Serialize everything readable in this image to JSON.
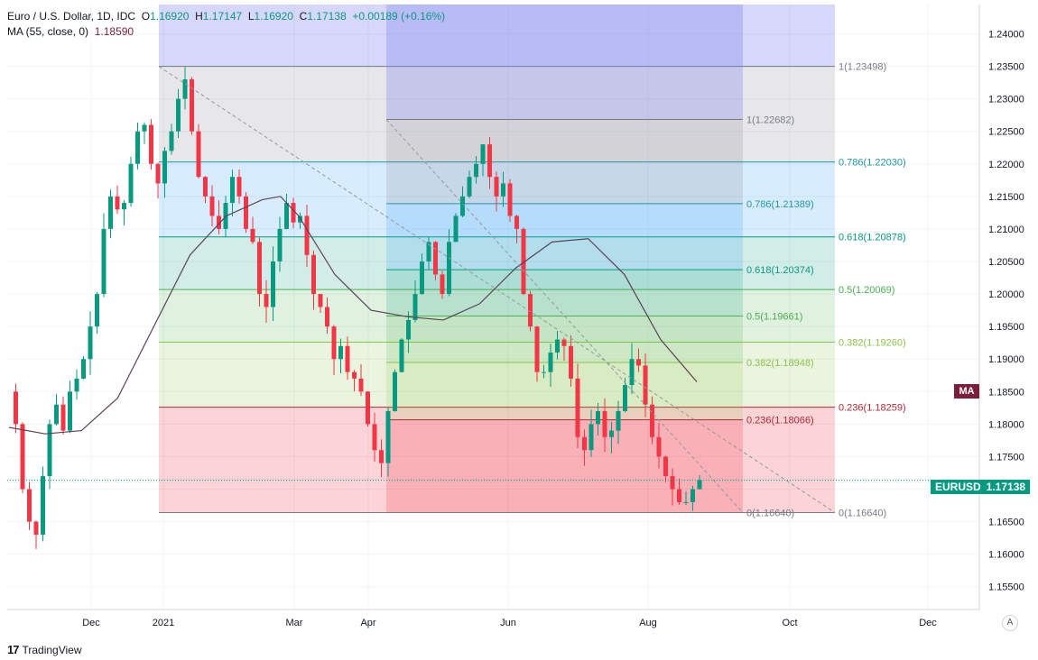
{
  "header": {
    "symbol": "Euro / U.S. Dollar, 1D, IDC",
    "open_label": "O",
    "open": "1.16920",
    "high_label": "H",
    "high": "1.17147",
    "low_label": "L",
    "low": "1.16920",
    "close_label": "C",
    "close": "1.17138",
    "change": "+0.00189 (+0.16%)",
    "ma_label": "MA (55, close, 0)",
    "ma_value": "1.18590"
  },
  "badges": {
    "symbol": "EURUSD",
    "last_price": "1.17138",
    "ma": "MA"
  },
  "branding": {
    "logo": "TradingView",
    "auto_button": "A"
  },
  "colors": {
    "up": "#089981",
    "down": "#f23645",
    "ma_line": "#5d4157",
    "badge_ma": "#7a1e3a"
  },
  "chart_data": {
    "type": "candlestick",
    "title": "",
    "xlabel": "",
    "ylabel": "",
    "ylim": [
      1.1515,
      1.2445
    ],
    "y_ticks": [
      1.155,
      1.16,
      1.165,
      1.17,
      1.175,
      1.18,
      1.185,
      1.19,
      1.195,
      1.2,
      1.205,
      1.21,
      1.215,
      1.22,
      1.225,
      1.23,
      1.235,
      1.24
    ],
    "x_ticks": [
      "Dec",
      "2021",
      "Mar",
      "Apr",
      "Jun",
      "Aug",
      "Oct",
      "Dec"
    ],
    "grid": true,
    "price_line": 1.17138,
    "ma_line_points": [
      [
        0,
        1.1795
      ],
      [
        0.1,
        1.1785
      ],
      [
        0.2,
        1.179
      ],
      [
        0.3,
        1.184
      ],
      [
        0.4,
        1.195
      ],
      [
        0.5,
        1.206
      ],
      [
        0.6,
        1.212
      ],
      [
        0.7,
        1.2145
      ],
      [
        0.75,
        1.215
      ],
      [
        0.8,
        1.212
      ],
      [
        0.9,
        1.203
      ],
      [
        1.0,
        1.1975
      ],
      [
        1.1,
        1.1965
      ],
      [
        1.2,
        1.196
      ],
      [
        1.3,
        1.1985
      ],
      [
        1.4,
        1.204
      ],
      [
        1.5,
        1.208
      ],
      [
        1.6,
        1.2085
      ],
      [
        1.7,
        1.203
      ],
      [
        1.8,
        1.193
      ],
      [
        1.9,
        1.1865
      ]
    ],
    "fib_retracements": [
      {
        "name": "fib-large",
        "levels": [
          {
            "label": "1(1.23498)",
            "value": 1.23498,
            "color": "#787b86"
          },
          {
            "label": "0.786(1.22030)",
            "value": 1.2203,
            "color": "#2196a6"
          },
          {
            "label": "0.618(1.20878)",
            "value": 1.20878,
            "color": "#089981"
          },
          {
            "label": "0.5(1.20069)",
            "value": 1.20069,
            "color": "#4caf50"
          },
          {
            "label": "0.382(1.19260)",
            "value": 1.1926,
            "color": "#8bc34a"
          },
          {
            "label": "0.236(1.18259)",
            "value": 1.18259,
            "color": "#b22833"
          },
          {
            "label": "0(1.16640)",
            "value": 1.1664,
            "color": "#787b86"
          }
        ]
      },
      {
        "name": "fib-small",
        "levels": [
          {
            "label": "1(1.22682)",
            "value": 1.22682,
            "color": "#787b86"
          },
          {
            "label": "0.786(1.21389)",
            "value": 1.21389,
            "color": "#2196a6"
          },
          {
            "label": "0.618(1.20374)",
            "value": 1.20374,
            "color": "#089981"
          },
          {
            "label": "0.5(1.19661)",
            "value": 1.19661,
            "color": "#4caf50"
          },
          {
            "label": "0.382(1.18948)",
            "value": 1.18948,
            "color": "#8bc34a"
          },
          {
            "label": "0.236(1.18066)",
            "value": 1.18066,
            "color": "#b22833"
          },
          {
            "label": "0(1.16640)",
            "value": 1.1664,
            "color": "#787b86"
          }
        ]
      }
    ],
    "trend_lines": [
      {
        "name": "trend-line-large",
        "from": 1.23498,
        "to": 1.1664
      },
      {
        "name": "trend-line-small",
        "from": 1.22682,
        "to": 1.1664
      }
    ],
    "ohlc_path": [
      1.185,
      1.18,
      1.17,
      1.165,
      1.163,
      1.172,
      1.18,
      1.183,
      1.179,
      1.185,
      1.187,
      1.19,
      1.195,
      1.2,
      1.21,
      1.215,
      1.213,
      1.214,
      1.22,
      1.225,
      1.226,
      1.22,
      1.217,
      1.222,
      1.225,
      1.23,
      1.233,
      1.225,
      1.218,
      1.215,
      1.212,
      1.21,
      1.214,
      1.218,
      1.215,
      1.21,
      1.208,
      1.2,
      1.198,
      1.205,
      1.21,
      1.214,
      1.211,
      1.212,
      1.206,
      1.2,
      1.198,
      1.195,
      1.19,
      1.192,
      1.188,
      1.187,
      1.185,
      1.18,
      1.176,
      1.174,
      1.182,
      1.188,
      1.193,
      1.196,
      1.2,
      1.205,
      1.208,
      1.203,
      1.2,
      1.208,
      1.212,
      1.215,
      1.218,
      1.22,
      1.223,
      1.218,
      1.215,
      1.217,
      1.212,
      1.21,
      1.2,
      1.195,
      1.188,
      1.188,
      1.191,
      1.193,
      1.192,
      1.187,
      1.178,
      1.176,
      1.18,
      1.182,
      1.178,
      1.179,
      1.182,
      1.186,
      1.19,
      1.189,
      1.183,
      1.178,
      1.175,
      1.172,
      1.17,
      1.168,
      1.168,
      1.17,
      1.1714
    ]
  }
}
